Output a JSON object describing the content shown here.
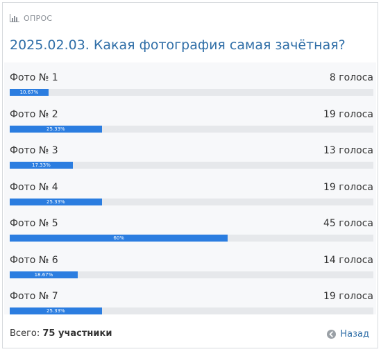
{
  "poll": {
    "section_label": "ОПРОС",
    "title": "2025.02.03. Какая фотография самая зачётная?",
    "options": [
      {
        "label": "Фото № 1",
        "votes": "8 голоса",
        "percent_label": "10.67%",
        "percent": 10.67
      },
      {
        "label": "Фото № 2",
        "votes": "19 голоса",
        "percent_label": "25.33%",
        "percent": 25.33
      },
      {
        "label": "Фото № 3",
        "votes": "13 голоса",
        "percent_label": "17.33%",
        "percent": 17.33
      },
      {
        "label": "Фото № 4",
        "votes": "19 голоса",
        "percent_label": "25.33%",
        "percent": 25.33
      },
      {
        "label": "Фото № 5",
        "votes": "45 голоса",
        "percent_label": "60%",
        "percent": 60
      },
      {
        "label": "Фото № 6",
        "votes": "14 голоса",
        "percent_label": "18.67%",
        "percent": 18.67
      },
      {
        "label": "Фото № 7",
        "votes": "19 голоса",
        "percent_label": "25.33%",
        "percent": 25.33
      }
    ],
    "total_prefix": "Всего:",
    "total_value": "75 участники",
    "back_label": "Назад"
  },
  "colors": {
    "accent": "#2b7de0",
    "title": "#2f6ea7",
    "track": "#e6e8eb",
    "back_icon": "#9aa0a6"
  },
  "icons": {
    "header": "bar-chart-icon",
    "back": "arrow-left-circle-icon"
  }
}
